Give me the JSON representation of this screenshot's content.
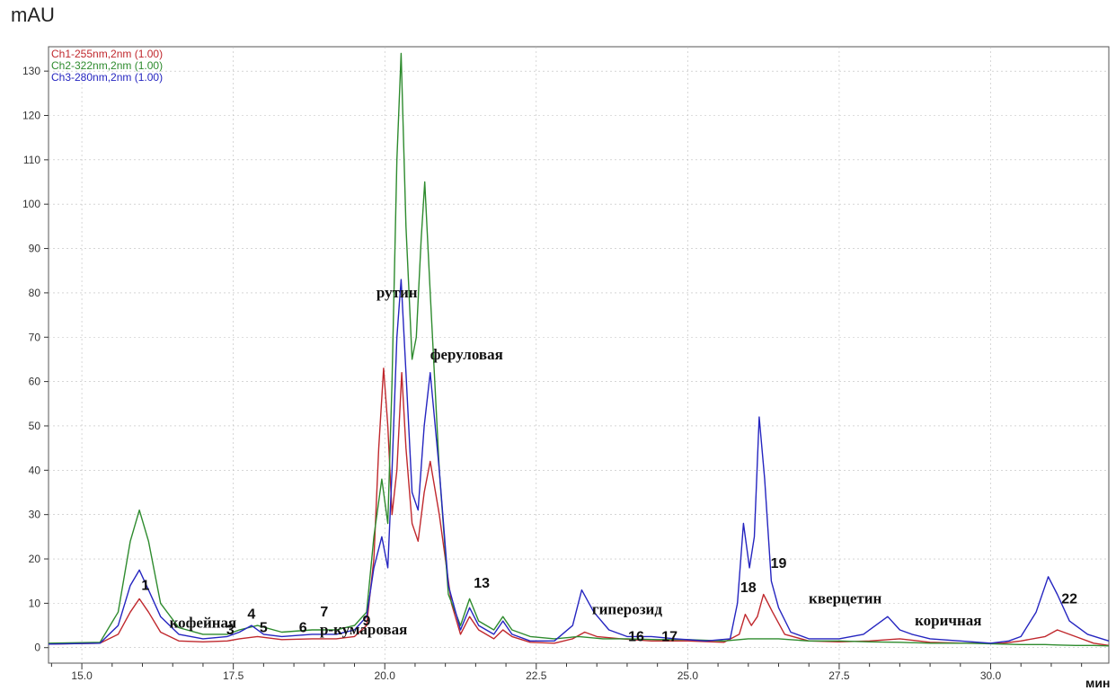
{
  "chart_data": {
    "type": "line",
    "title": "",
    "ylabel": "mAU",
    "xlabel": "мин",
    "xlim": [
      14.45,
      31.95
    ],
    "ylim": [
      -3.5,
      135.5
    ],
    "xticks": [
      "15.0",
      "17.5",
      "20.0",
      "22.5",
      "25.0",
      "27.5",
      "30.0"
    ],
    "xtick_values": [
      15.0,
      17.5,
      20.0,
      22.5,
      25.0,
      27.5,
      30.0
    ],
    "yticks": [
      "0",
      "10",
      "20",
      "30",
      "40",
      "50",
      "60",
      "70",
      "80",
      "90",
      "100",
      "110",
      "120",
      "130"
    ],
    "ytick_values": [
      0,
      10,
      20,
      30,
      40,
      50,
      60,
      70,
      80,
      90,
      100,
      110,
      120,
      130
    ],
    "grid": true,
    "legend_position": "top-left",
    "series": [
      {
        "name": "Ch1-255nm,2nm (1.00)",
        "color": "#c0282d",
        "x": [
          14.45,
          15.3,
          15.6,
          15.8,
          15.95,
          16.1,
          16.3,
          16.6,
          17.0,
          17.4,
          17.6,
          17.9,
          18.3,
          18.8,
          19.2,
          19.5,
          19.7,
          19.82,
          19.9,
          19.98,
          20.05,
          20.12,
          20.2,
          20.28,
          20.35,
          20.45,
          20.55,
          20.65,
          20.75,
          20.9,
          21.1,
          21.25,
          21.4,
          21.55,
          21.8,
          21.95,
          22.1,
          22.4,
          22.8,
          23.1,
          23.3,
          23.5,
          23.9,
          24.4,
          25.0,
          25.6,
          25.85,
          25.95,
          26.05,
          26.15,
          26.25,
          26.4,
          26.6,
          27.0,
          27.5,
          28.0,
          28.5,
          29.0,
          29.6,
          30.2,
          30.5,
          30.9,
          31.1,
          31.4,
          31.7,
          31.95
        ],
        "y": [
          0.8,
          1.0,
          3.0,
          8.0,
          11.0,
          8.0,
          3.5,
          1.5,
          1.3,
          1.5,
          2.0,
          2.5,
          1.8,
          2.0,
          2.0,
          2.5,
          5.0,
          20.0,
          45.0,
          63.0,
          50.0,
          30.0,
          40.0,
          62.0,
          45.0,
          28.0,
          24.0,
          35.0,
          42.0,
          30.0,
          10.0,
          3.0,
          7.0,
          4.0,
          2.0,
          4.0,
          2.5,
          1.2,
          1.0,
          2.0,
          3.5,
          2.5,
          2.0,
          1.5,
          1.5,
          1.2,
          3.0,
          7.5,
          5.0,
          7.0,
          12.0,
          8.0,
          3.0,
          1.5,
          1.3,
          1.5,
          2.0,
          1.2,
          1.0,
          1.0,
          1.5,
          2.5,
          4.0,
          2.5,
          1.0,
          0.5
        ]
      },
      {
        "name": "Ch2-322nm,2nm (1.00)",
        "color": "#2e8b2e",
        "x": [
          14.45,
          15.3,
          15.6,
          15.8,
          15.95,
          16.1,
          16.3,
          16.6,
          17.0,
          17.4,
          17.6,
          17.9,
          18.3,
          18.8,
          19.2,
          19.5,
          19.7,
          19.82,
          19.95,
          20.05,
          20.12,
          20.2,
          20.27,
          20.35,
          20.45,
          20.52,
          20.6,
          20.66,
          20.75,
          20.9,
          21.05,
          21.25,
          21.4,
          21.55,
          21.8,
          21.95,
          22.1,
          22.4,
          22.8,
          23.2,
          23.6,
          24.0,
          24.5,
          25.0,
          25.6,
          26.0,
          26.5,
          27.0,
          27.5,
          28.0,
          28.5,
          29.0,
          29.6,
          30.2,
          30.5,
          30.9,
          31.1,
          31.4,
          31.7,
          31.95
        ],
        "y": [
          1.0,
          1.2,
          8.0,
          24.0,
          31.0,
          24.0,
          10.0,
          4.5,
          3.0,
          3.0,
          4.0,
          5.0,
          3.5,
          4.0,
          4.0,
          5.0,
          8.0,
          25.0,
          38.0,
          28.0,
          60.0,
          110.0,
          134.0,
          95.0,
          65.0,
          70.0,
          92.0,
          105.0,
          80.0,
          40.0,
          12.0,
          5.0,
          11.0,
          6.0,
          4.0,
          7.0,
          4.0,
          2.5,
          2.0,
          2.5,
          2.0,
          2.0,
          1.8,
          1.8,
          1.5,
          2.0,
          2.0,
          1.5,
          1.5,
          1.3,
          1.2,
          1.0,
          1.0,
          0.8,
          0.7,
          0.7,
          0.6,
          0.5,
          0.5,
          0.4
        ]
      },
      {
        "name": "Ch3-280nm,2nm (1.00)",
        "color": "#2525c0",
        "x": [
          14.45,
          15.3,
          15.6,
          15.8,
          15.95,
          16.1,
          16.3,
          16.6,
          17.0,
          17.4,
          17.6,
          17.8,
          18.0,
          18.3,
          18.8,
          19.2,
          19.5,
          19.7,
          19.82,
          19.95,
          20.05,
          20.12,
          20.2,
          20.27,
          20.35,
          20.45,
          20.55,
          20.65,
          20.75,
          20.9,
          21.05,
          21.25,
          21.4,
          21.55,
          21.8,
          21.95,
          22.1,
          22.4,
          22.8,
          23.1,
          23.25,
          23.45,
          23.7,
          24.0,
          24.4,
          24.8,
          25.3,
          25.7,
          25.82,
          25.92,
          26.02,
          26.1,
          26.18,
          26.27,
          26.38,
          26.5,
          26.7,
          27.0,
          27.5,
          27.9,
          28.1,
          28.3,
          28.5,
          28.7,
          29.0,
          29.5,
          30.0,
          30.3,
          30.5,
          30.75,
          30.95,
          31.1,
          31.3,
          31.6,
          31.95
        ],
        "y": [
          0.8,
          1.0,
          5.0,
          14.0,
          17.5,
          13.0,
          7.0,
          3.0,
          2.0,
          2.5,
          3.5,
          5.0,
          3.0,
          2.5,
          3.0,
          3.0,
          4.0,
          7.0,
          18.0,
          25.0,
          18.0,
          40.0,
          70.0,
          83.0,
          62.0,
          35.0,
          31.0,
          50.0,
          62.0,
          40.0,
          14.0,
          4.0,
          9.0,
          5.0,
          3.0,
          6.0,
          3.0,
          1.5,
          1.5,
          5.0,
          13.0,
          8.0,
          4.0,
          2.5,
          2.5,
          2.0,
          1.5,
          2.0,
          10.0,
          28.0,
          18.0,
          25.0,
          52.0,
          38.0,
          15.0,
          9.0,
          3.5,
          2.0,
          2.0,
          3.0,
          5.0,
          7.0,
          4.0,
          3.0,
          2.0,
          1.5,
          1.0,
          1.5,
          2.5,
          8.0,
          16.0,
          12.0,
          6.0,
          3.0,
          1.5
        ]
      }
    ],
    "annotations": [
      {
        "text": "1",
        "x": 16.05,
        "y": 13.0,
        "style": "num"
      },
      {
        "text": "кофейная",
        "x": 17.0,
        "y": 4.5,
        "style": "serif"
      },
      {
        "text": "3",
        "x": 17.45,
        "y": 3.0,
        "style": "num"
      },
      {
        "text": "4",
        "x": 17.8,
        "y": 6.5,
        "style": "num"
      },
      {
        "text": "5",
        "x": 18.0,
        "y": 3.5,
        "style": "num"
      },
      {
        "text": "6",
        "x": 18.65,
        "y": 3.5,
        "style": "num"
      },
      {
        "text": "7",
        "x": 19.0,
        "y": 7.0,
        "style": "num"
      },
      {
        "text": "p-кумаровая",
        "x": 19.65,
        "y": 3.0,
        "style": "serif"
      },
      {
        "text": "9",
        "x": 19.7,
        "y": 5.0,
        "style": "num"
      },
      {
        "text": "рутин",
        "x": 20.2,
        "y": 79.0,
        "style": "serif"
      },
      {
        "text": "феруловая",
        "x": 21.35,
        "y": 65.0,
        "style": "serif"
      },
      {
        "text": "13",
        "x": 21.6,
        "y": 13.5,
        "style": "num"
      },
      {
        "text": "гиперозид",
        "x": 24.0,
        "y": 7.5,
        "style": "serif"
      },
      {
        "text": "16",
        "x": 24.15,
        "y": 1.5,
        "style": "num"
      },
      {
        "text": "17",
        "x": 24.7,
        "y": 1.5,
        "style": "num"
      },
      {
        "text": "18",
        "x": 26.0,
        "y": 12.5,
        "style": "num"
      },
      {
        "text": "19",
        "x": 26.5,
        "y": 18.0,
        "style": "num"
      },
      {
        "text": "кверцетин",
        "x": 27.6,
        "y": 10.0,
        "style": "serif"
      },
      {
        "text": "коричная",
        "x": 29.3,
        "y": 5.0,
        "style": "serif"
      },
      {
        "text": "22",
        "x": 31.3,
        "y": 10.0,
        "style": "num"
      }
    ]
  }
}
